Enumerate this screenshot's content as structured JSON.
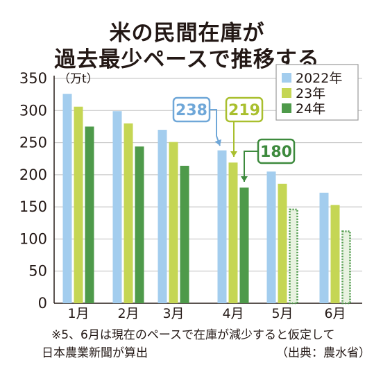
{
  "title_line1": "米の民間在庫が",
  "title_line2": "過去最少ペースで推移する",
  "unit_label": "（万t）",
  "footnote_line1": "※5、6月は現在のペースで在庫が減少すると仮定して",
  "footnote_line2": "日本農業新聞が算出",
  "source": "（出典：農水省）",
  "colors": {
    "series_2022": "#a3cdee",
    "series_23": "#c5d654",
    "series_24": "#4e9a4a",
    "grid": "#bfbfbf",
    "axis": "#231815",
    "callout_238": "#6fa7d8",
    "callout_219": "#a9bf2e",
    "callout_180": "#3d8a3d"
  },
  "chart_data": {
    "type": "bar",
    "categories": [
      "1月",
      "2月",
      "3月",
      "4月",
      "5月",
      "6月"
    ],
    "ylim": [
      0,
      350
    ],
    "yticks": [
      0,
      50,
      100,
      150,
      200,
      250,
      300,
      350
    ],
    "grid": true,
    "legend_position": "top-right",
    "series": [
      {
        "name": "2022年",
        "values": [
          326,
          299,
          270,
          238,
          205,
          172
        ]
      },
      {
        "name": "23年",
        "values": [
          306,
          280,
          251,
          219,
          186,
          153
        ]
      },
      {
        "name": "24年",
        "values": [
          275,
          244,
          214,
          180,
          147,
          113
        ],
        "estimated_from_index": 4
      }
    ],
    "annotations": [
      {
        "text": "238",
        "series": 0,
        "category_index": 3
      },
      {
        "text": "219",
        "series": 1,
        "category_index": 3
      },
      {
        "text": "180",
        "series": 2,
        "category_index": 3
      }
    ]
  }
}
